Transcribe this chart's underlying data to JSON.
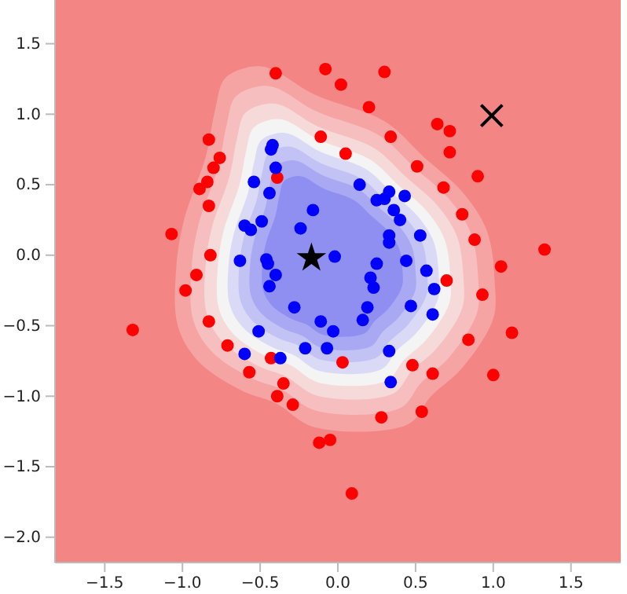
{
  "chart_data": {
    "type": "scatter",
    "xlim": [
      -1.82,
      1.82
    ],
    "ylim": [
      -2.18,
      1.81
    ],
    "xticks": [
      {
        "value": -1.5,
        "label": "−1.5"
      },
      {
        "value": -1,
        "label": "−1.0"
      },
      {
        "value": -0.5,
        "label": "−0.5"
      },
      {
        "value": 0,
        "label": "0.0"
      },
      {
        "value": 0.5,
        "label": "0.5"
      },
      {
        "value": 1,
        "label": "1.0"
      },
      {
        "value": 1.5,
        "label": "1.5"
      }
    ],
    "yticks": [
      {
        "value": -2,
        "label": "−2.0"
      },
      {
        "value": -1.5,
        "label": "−1.5"
      },
      {
        "value": -1,
        "label": "−1.0"
      },
      {
        "value": -0.5,
        "label": "−0.5"
      },
      {
        "value": 0,
        "label": "0.0"
      },
      {
        "value": 0.5,
        "label": "0.5"
      },
      {
        "value": 1,
        "label": "1.0"
      },
      {
        "value": 1.5,
        "label": "1.5"
      }
    ],
    "grid": false,
    "series": [
      {
        "color": "#ff0000",
        "marker": "circle",
        "x": [
          -0.4,
          -0.08,
          0.02,
          -0.83,
          -0.76,
          -0.8,
          -0.84,
          -0.89,
          -0.83,
          -1.07,
          -0.82,
          -0.91,
          -0.98,
          -0.11,
          0.05,
          -0.39,
          0.3,
          0.2,
          0.64,
          0.72,
          0.34,
          0.72,
          0.9,
          0.51,
          0.68,
          0.8,
          0.88,
          1.33,
          1.05,
          0.7,
          0.93,
          -1.32,
          -0.83,
          -0.71,
          -0.57,
          -0.43,
          -0.35,
          -0.39,
          -0.29,
          -0.12,
          -0.05,
          0.03,
          1.12,
          0.84,
          1.0,
          0.48,
          0.61,
          0.54,
          0.28,
          0.09
        ],
        "values": [
          1.29,
          1.32,
          1.21,
          0.82,
          0.69,
          0.62,
          0.52,
          0.47,
          0.35,
          0.15,
          0.0,
          -0.14,
          -0.25,
          0.84,
          0.72,
          0.55,
          1.3,
          1.05,
          0.93,
          0.88,
          0.84,
          0.73,
          0.56,
          0.63,
          0.48,
          0.29,
          0.11,
          0.04,
          -0.08,
          -0.18,
          -0.28,
          -0.53,
          -0.47,
          -0.64,
          -0.83,
          -0.73,
          -0.91,
          -1.0,
          -1.06,
          -1.33,
          -1.31,
          -0.76,
          -0.55,
          -0.6,
          -0.85,
          -0.78,
          -0.84,
          -1.11,
          -1.15,
          -1.69
        ]
      },
      {
        "color": "#0000ff",
        "marker": "circle",
        "x": [
          -0.42,
          -0.43,
          -0.4,
          -0.54,
          -0.44,
          -0.16,
          -0.49,
          -0.6,
          -0.56,
          -0.24,
          -0.02,
          -0.63,
          -0.46,
          -0.45,
          -0.4,
          -0.44,
          0.14,
          0.33,
          0.25,
          0.3,
          0.43,
          0.36,
          0.4,
          0.53,
          0.33,
          0.33,
          0.25,
          0.44,
          0.57,
          0.21,
          0.23,
          0.62,
          -0.28,
          -0.11,
          -0.03,
          -0.51,
          -0.21,
          -0.07,
          -0.6,
          -0.37,
          0.19,
          0.47,
          0.61,
          0.16,
          0.33,
          0.34
        ],
        "values": [
          0.78,
          0.75,
          0.62,
          0.52,
          0.44,
          0.32,
          0.24,
          0.21,
          0.18,
          0.19,
          -0.01,
          -0.04,
          -0.03,
          -0.06,
          -0.14,
          -0.22,
          0.5,
          0.45,
          0.39,
          0.4,
          0.42,
          0.32,
          0.25,
          0.14,
          0.14,
          0.09,
          -0.06,
          -0.04,
          -0.11,
          -0.16,
          -0.23,
          -0.24,
          -0.37,
          -0.47,
          -0.54,
          -0.54,
          -0.66,
          -0.66,
          -0.7,
          -0.73,
          -0.37,
          -0.36,
          -0.42,
          -0.46,
          -0.68,
          -0.9
        ]
      },
      {
        "color": "#000000",
        "marker": "star",
        "x": [
          -0.17
        ],
        "values": [
          -0.02
        ]
      },
      {
        "color": "#000000",
        "marker": "cross",
        "x": [
          0.99
        ],
        "values": [
          0.99
        ]
      }
    ]
  }
}
